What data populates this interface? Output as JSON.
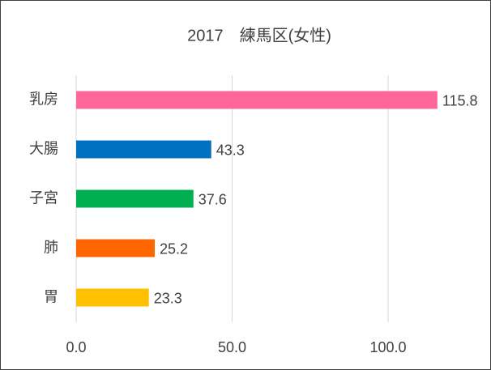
{
  "chart_data": {
    "type": "bar",
    "orientation": "horizontal",
    "title": "2017　練馬区(女性)",
    "categories": [
      "乳房",
      "大腸",
      "子宮",
      "肺",
      "胃"
    ],
    "values": [
      115.8,
      43.3,
      37.6,
      25.2,
      23.3
    ],
    "colors": [
      "#ff6699",
      "#0070c0",
      "#00b050",
      "#ff6600",
      "#ffc000"
    ],
    "xlim": [
      0,
      120
    ],
    "xticks": [
      {
        "value": 0,
        "label": "0.0"
      },
      {
        "value": 50,
        "label": "50.0"
      },
      {
        "value": 100,
        "label": "100.0"
      }
    ],
    "grid": true
  }
}
